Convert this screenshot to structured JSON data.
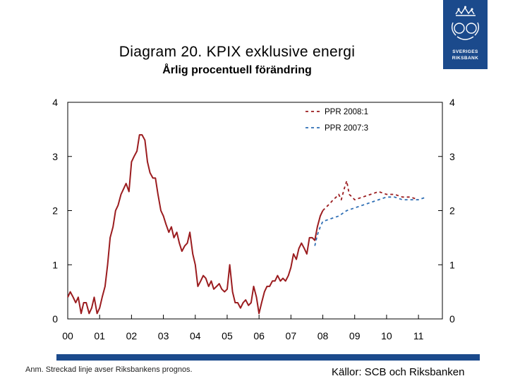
{
  "header": {
    "title": "Diagram 20. KPIX exklusive energi",
    "subtitle": "Årlig procentuell förändring"
  },
  "logo": {
    "line1": "SVERIGES",
    "line2": "RIKSBANK",
    "icon": "crown-crest-icon"
  },
  "footer": {
    "note": "Anm. Streckad linje avser Riksbankens prognos.",
    "source": "Källor: SCB och Riksbanken"
  },
  "colors": {
    "actual": "#9b1c1f",
    "forecast_2008": "#9b1c1f",
    "forecast_2007": "#2f6fb5",
    "brand": "#1b4a8c"
  },
  "chart_data": {
    "type": "line",
    "title": "Diagram 20. KPIX exklusive energi",
    "subtitle": "Årlig procentuell förändring",
    "xlabel": "",
    "ylabel": "",
    "x_range": [
      2000.0,
      2011.75
    ],
    "ylim": [
      0,
      4
    ],
    "y_ticks": [
      0,
      1,
      2,
      3,
      4
    ],
    "y_tick_labels": [
      "0",
      "1",
      "2",
      "3",
      "4"
    ],
    "x_ticks": [
      2000,
      2001,
      2002,
      2003,
      2004,
      2005,
      2006,
      2007,
      2008,
      2009,
      2010,
      2011
    ],
    "x_tick_labels": [
      "00",
      "01",
      "02",
      "03",
      "04",
      "05",
      "06",
      "07",
      "08",
      "09",
      "10",
      "11"
    ],
    "grid": false,
    "legend_position": "top-right",
    "series": [
      {
        "name": "KPIX exklusive energi",
        "style": "solid",
        "color": "#9b1c1f",
        "x": [
          2000.0,
          2000.08,
          2000.17,
          2000.25,
          2000.33,
          2000.42,
          2000.5,
          2000.58,
          2000.67,
          2000.75,
          2000.83,
          2000.92,
          2001.0,
          2001.08,
          2001.17,
          2001.25,
          2001.33,
          2001.42,
          2001.5,
          2001.58,
          2001.67,
          2001.75,
          2001.83,
          2001.92,
          2002.0,
          2002.08,
          2002.17,
          2002.25,
          2002.33,
          2002.42,
          2002.5,
          2002.58,
          2002.67,
          2002.75,
          2002.83,
          2002.92,
          2003.0,
          2003.08,
          2003.17,
          2003.25,
          2003.33,
          2003.42,
          2003.5,
          2003.58,
          2003.67,
          2003.75,
          2003.83,
          2003.92,
          2004.0,
          2004.08,
          2004.17,
          2004.25,
          2004.33,
          2004.42,
          2004.5,
          2004.58,
          2004.67,
          2004.75,
          2004.83,
          2004.92,
          2005.0,
          2005.08,
          2005.17,
          2005.25,
          2005.33,
          2005.42,
          2005.5,
          2005.58,
          2005.67,
          2005.75,
          2005.83,
          2005.92,
          2006.0,
          2006.08,
          2006.17,
          2006.25,
          2006.33,
          2006.42,
          2006.5,
          2006.58,
          2006.67,
          2006.75,
          2006.83,
          2006.92,
          2007.0,
          2007.08,
          2007.17,
          2007.25,
          2007.33,
          2007.42,
          2007.5,
          2007.58,
          2007.67,
          2007.75,
          2007.83,
          2007.92,
          2008.0
        ],
        "y": [
          0.4,
          0.5,
          0.4,
          0.3,
          0.4,
          0.1,
          0.3,
          0.3,
          0.1,
          0.2,
          0.4,
          0.1,
          0.2,
          0.4,
          0.6,
          1.0,
          1.5,
          1.7,
          2.0,
          2.1,
          2.3,
          2.4,
          2.5,
          2.35,
          2.9,
          3.0,
          3.1,
          3.4,
          3.4,
          3.3,
          2.9,
          2.7,
          2.6,
          2.6,
          2.3,
          2.0,
          1.9,
          1.75,
          1.6,
          1.7,
          1.5,
          1.6,
          1.4,
          1.25,
          1.35,
          1.4,
          1.6,
          1.2,
          1.0,
          0.6,
          0.7,
          0.8,
          0.75,
          0.6,
          0.7,
          0.55,
          0.6,
          0.65,
          0.55,
          0.5,
          0.55,
          1.0,
          0.5,
          0.3,
          0.3,
          0.2,
          0.3,
          0.35,
          0.25,
          0.3,
          0.6,
          0.4,
          0.1,
          0.3,
          0.5,
          0.6,
          0.6,
          0.7,
          0.7,
          0.8,
          0.7,
          0.75,
          0.7,
          0.8,
          0.95,
          1.2,
          1.1,
          1.3,
          1.4,
          1.3,
          1.2,
          1.5,
          1.5,
          1.45,
          1.7,
          1.9,
          2.0
        ]
      },
      {
        "name": "PPR 2008:1",
        "style": "dashed",
        "color": "#9b1c1f",
        "x": [
          2008.0,
          2008.08,
          2008.17,
          2008.25,
          2008.33,
          2008.42,
          2008.5,
          2008.58,
          2008.67,
          2008.75,
          2008.83,
          2008.92,
          2009.0,
          2009.25,
          2009.5,
          2009.75,
          2010.0,
          2010.25,
          2010.5,
          2010.75,
          2011.0
        ],
        "y": [
          2.0,
          2.05,
          2.1,
          2.15,
          2.2,
          2.25,
          2.3,
          2.2,
          2.4,
          2.55,
          2.3,
          2.25,
          2.2,
          2.25,
          2.3,
          2.35,
          2.3,
          2.3,
          2.25,
          2.25,
          2.2
        ]
      },
      {
        "name": "PPR 2007:3",
        "style": "dashed",
        "color": "#2f6fb5",
        "x": [
          2007.75,
          2007.83,
          2007.92,
          2008.0,
          2008.25,
          2008.5,
          2008.75,
          2009.0,
          2009.25,
          2009.5,
          2009.75,
          2010.0,
          2010.25,
          2010.5,
          2010.75,
          2011.0,
          2011.25
        ],
        "y": [
          1.35,
          1.55,
          1.7,
          1.8,
          1.85,
          1.9,
          2.0,
          2.05,
          2.1,
          2.15,
          2.2,
          2.25,
          2.25,
          2.2,
          2.2,
          2.2,
          2.25
        ]
      }
    ]
  }
}
